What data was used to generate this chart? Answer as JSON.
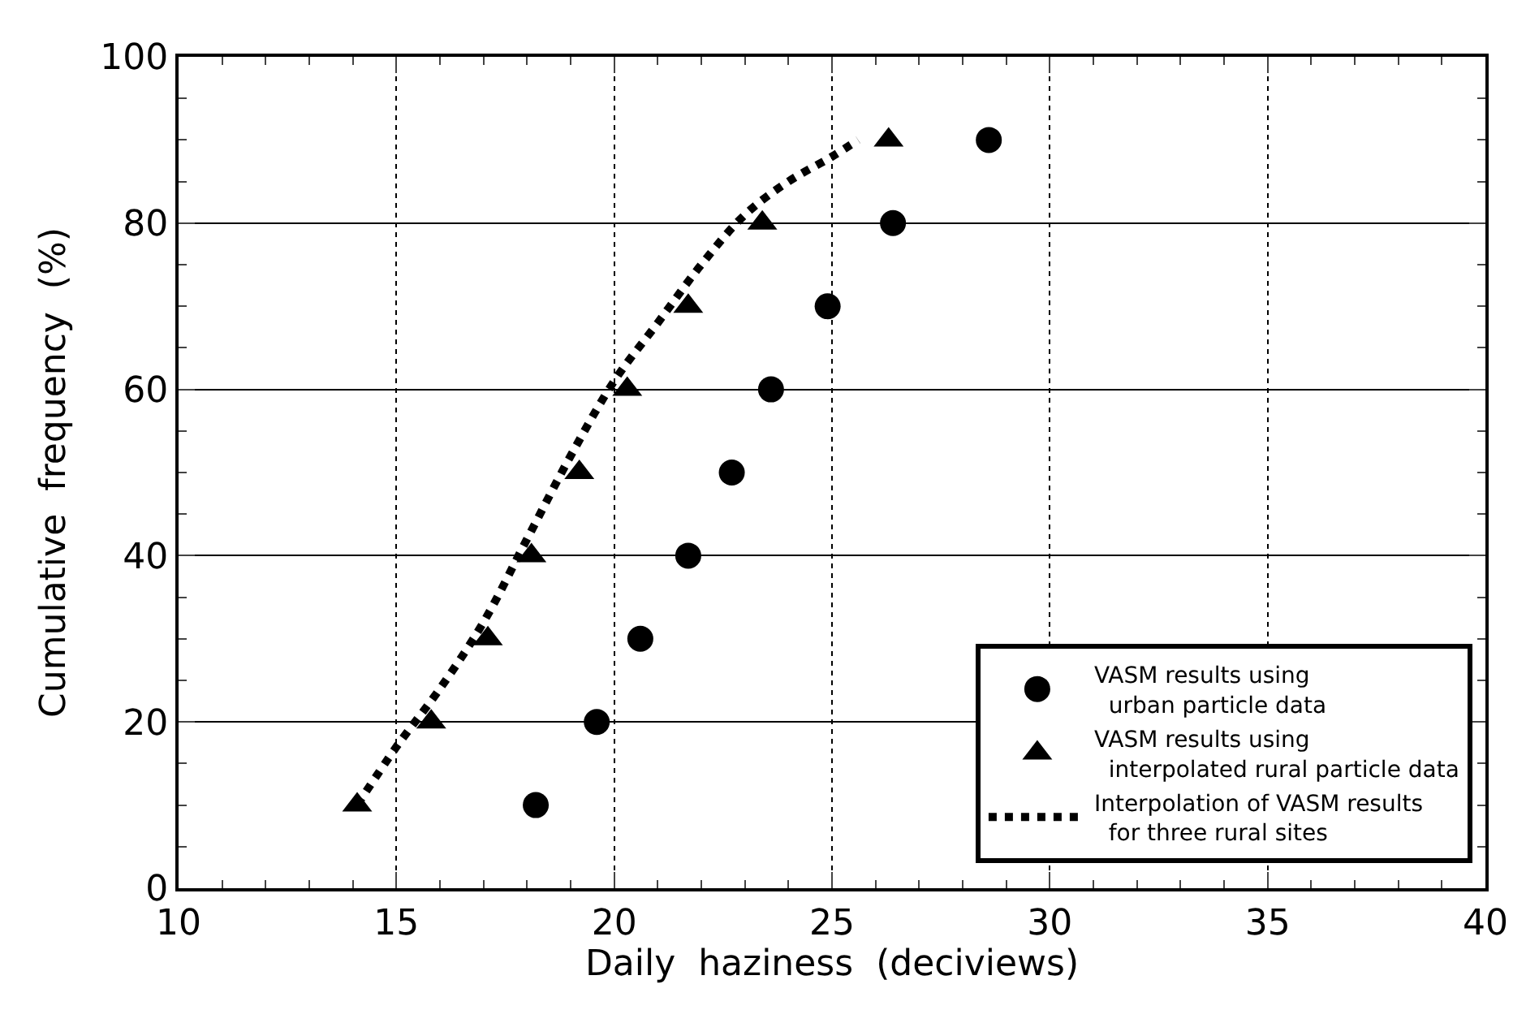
{
  "chart_data": {
    "type": "scatter",
    "xlabel": "Daily  haziness  (deciviews)",
    "ylabel": "Cumulative  frequency  (%)",
    "xlim": [
      10,
      40
    ],
    "xticks": [
      10,
      15,
      20,
      25,
      30,
      35,
      40
    ],
    "ylim": [
      0,
      100
    ],
    "yticks": [
      0,
      20,
      40,
      60,
      80,
      100
    ],
    "grid": true,
    "legend": "bottom right",
    "series": [
      {
        "name": "VASM results using\n  urban particle data",
        "marker": "circle",
        "color": "#000000",
        "x": [
          18.2,
          19.6,
          20.6,
          21.7,
          22.7,
          23.6,
          24.9,
          26.4,
          28.6
        ],
        "values": [
          10,
          20,
          30,
          40,
          50,
          60,
          70,
          80,
          90
        ]
      },
      {
        "name": "VASM results using\n  interpolated rural particle data",
        "marker": "triangle",
        "color": "#000000",
        "x": [
          14.1,
          15.8,
          17.1,
          18.1,
          19.2,
          20.3,
          21.7,
          23.4,
          26.3
        ],
        "values": [
          10,
          20,
          30,
          40,
          50,
          60,
          70,
          80,
          90
        ]
      },
      {
        "name": "Interpolation of VASM results\n  for three rural sites",
        "type": "line",
        "line_style": "dotted",
        "marker": "none",
        "color": "#000000",
        "x": [
          14.1,
          15,
          16,
          17,
          18,
          19,
          20,
          21,
          22,
          23,
          24,
          25,
          25.6
        ],
        "values": [
          10,
          17,
          24,
          32,
          42,
          52,
          61,
          68,
          75,
          81,
          85,
          88,
          90
        ]
      }
    ]
  }
}
